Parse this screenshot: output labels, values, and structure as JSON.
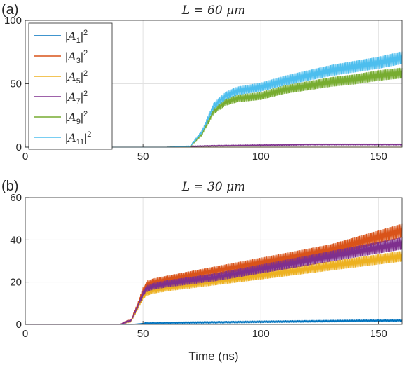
{
  "chart_data": [
    {
      "type": "line",
      "panel_label": "(a)",
      "title": "L = 60 μm",
      "xlabel": "",
      "ylabel": "",
      "xlim": [
        0,
        160
      ],
      "ylim": [
        0,
        100
      ],
      "xticks": [
        0,
        50,
        100,
        150
      ],
      "yticks": [
        0,
        50,
        100
      ],
      "grid": true,
      "legend_position": "top-left",
      "series": [
        {
          "name": "|A1|^2",
          "color": "#0072BD",
          "x": [
            0,
            60,
            80,
            100,
            120,
            140,
            160
          ],
          "y": [
            0,
            0,
            0,
            0,
            0,
            0,
            0
          ]
        },
        {
          "name": "|A3|^2",
          "color": "#D95319",
          "x": [
            0,
            60,
            80,
            100,
            120,
            140,
            160
          ],
          "y": [
            0,
            0,
            0,
            0,
            0,
            0,
            0
          ]
        },
        {
          "name": "|A5|^2",
          "color": "#EDB120",
          "x": [
            0,
            60,
            80,
            100,
            120,
            140,
            160
          ],
          "y": [
            0,
            0,
            0,
            0,
            0,
            0,
            0
          ]
        },
        {
          "name": "|A7|^2",
          "color": "#7E2F8E",
          "x": [
            0,
            60,
            70,
            80,
            100,
            120,
            140,
            160
          ],
          "y": [
            0,
            0,
            0.5,
            1,
            1.5,
            2,
            2,
            2
          ]
        },
        {
          "name": "|A9|^2",
          "color": "#77AC30",
          "x": [
            0,
            60,
            70,
            75,
            80,
            85,
            90,
            100,
            110,
            120,
            130,
            140,
            150,
            160
          ],
          "y": [
            0,
            0,
            0.5,
            10,
            28,
            35,
            38,
            40,
            45,
            48,
            51,
            53,
            56,
            58
          ]
        },
        {
          "name": "|A11|^2",
          "color": "#4DBEEE",
          "x": [
            0,
            60,
            70,
            75,
            80,
            85,
            90,
            100,
            110,
            120,
            130,
            140,
            150,
            160
          ],
          "y": [
            0,
            0,
            0.6,
            12,
            32,
            40,
            44,
            47,
            52,
            56,
            60,
            63,
            66,
            70
          ]
        }
      ]
    },
    {
      "type": "line",
      "panel_label": "(b)",
      "title": "L = 30 μm",
      "xlabel": "Time (ns)",
      "ylabel": "",
      "xlim": [
        0,
        160
      ],
      "ylim": [
        0,
        60
      ],
      "xticks": [
        0,
        50,
        100,
        150
      ],
      "yticks": [
        0,
        20,
        40,
        60
      ],
      "grid": true,
      "legend_position": "none",
      "series": [
        {
          "name": "|A1|^2",
          "color": "#0072BD",
          "x": [
            0,
            45,
            50,
            70,
            100,
            130,
            160
          ],
          "y": [
            0,
            0,
            0.5,
            0.8,
            1.2,
            1.5,
            1.8
          ]
        },
        {
          "name": "|A3|^2",
          "color": "#D95319",
          "x": [
            0,
            40,
            45,
            48,
            50,
            52,
            55,
            60,
            70,
            80,
            90,
            100,
            110,
            120,
            130,
            140,
            150,
            160
          ],
          "y": [
            0,
            0,
            2,
            10,
            16,
            19,
            20,
            21,
            23,
            25,
            27,
            29,
            31,
            33,
            35,
            38,
            41,
            44
          ]
        },
        {
          "name": "|A5|^2",
          "color": "#EDB120",
          "x": [
            0,
            40,
            45,
            48,
            50,
            52,
            55,
            60,
            70,
            80,
            90,
            100,
            110,
            120,
            130,
            140,
            150,
            160
          ],
          "y": [
            0,
            0,
            1.5,
            8,
            13,
            15,
            16,
            17,
            18.5,
            20,
            21.5,
            23,
            24.5,
            26,
            27.5,
            29,
            30.5,
            32
          ]
        },
        {
          "name": "|A7|^2",
          "color": "#7E2F8E",
          "x": [
            0,
            40,
            45,
            48,
            50,
            52,
            55,
            60,
            70,
            80,
            90,
            100,
            110,
            120,
            130,
            140,
            150,
            160
          ],
          "y": [
            0,
            0,
            1.8,
            9,
            14.5,
            17,
            18,
            19,
            20.5,
            22,
            24,
            26,
            28,
            30,
            32,
            34,
            36,
            38
          ]
        }
      ]
    }
  ]
}
